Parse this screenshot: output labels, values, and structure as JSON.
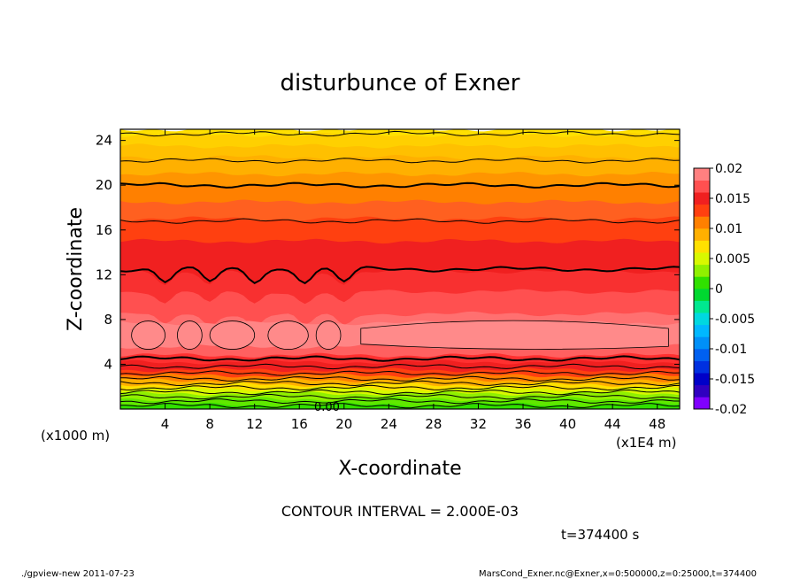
{
  "chart_data": {
    "type": "heatmap",
    "title": "disturbunce of Exner",
    "xlabel": "X-coordinate",
    "ylabel": "Z-coordinate",
    "x_unit_left": "(x1000 m)",
    "x_unit_right": "(x1E4 m)",
    "xlim": [
      0,
      50
    ],
    "ylim": [
      0,
      25
    ],
    "x_ticks": [
      "4",
      "8",
      "12",
      "16",
      "20",
      "24",
      "28",
      "32",
      "36",
      "40",
      "44",
      "48"
    ],
    "y_ticks": [
      "4",
      "8",
      "12",
      "16",
      "20",
      "24"
    ],
    "contour_label": "0.00",
    "contour_interval_text": "CONTOUR INTERVAL = 2.000E-03",
    "time_text": "t=374400 s",
    "colorbar": {
      "labels": [
        "0.02",
        "0.015",
        "0.01",
        "0.005",
        "0",
        "-0.005",
        "-0.01",
        "-0.015",
        "-0.02"
      ],
      "levels": [
        -0.02,
        -0.018,
        -0.016,
        -0.014,
        -0.012,
        -0.01,
        -0.008,
        -0.006,
        -0.004,
        -0.002,
        0,
        0.002,
        0.004,
        0.006,
        0.008,
        0.01,
        0.012,
        0.014,
        0.016,
        0.018,
        0.02
      ],
      "colors": [
        "#8000ff",
        "#3000c0",
        "#0000c8",
        "#0030e0",
        "#0060f0",
        "#0090f8",
        "#00b8ff",
        "#00d8e0",
        "#00e890",
        "#00d830",
        "#30e000",
        "#90f000",
        "#d8f800",
        "#ffe000",
        "#ffb000",
        "#ff8000",
        "#ff4010",
        "#f02020",
        "#ff5050",
        "#ff8080"
      ]
    },
    "bands": [
      {
        "z_top": 25,
        "color": "#ffe000"
      },
      {
        "z_top": 24.5,
        "color": "#ffd000"
      },
      {
        "z_top": 23.5,
        "color": "#ffc000"
      },
      {
        "z_top": 22.5,
        "color": "#ffb000"
      },
      {
        "z_top": 21,
        "color": "#ff9500"
      },
      {
        "z_top": 20,
        "color": "#ff8000"
      },
      {
        "z_top": 18.5,
        "color": "#ff6020"
      },
      {
        "z_top": 17,
        "color": "#ff4010"
      },
      {
        "z_top": 15,
        "color": "#f02020"
      },
      {
        "z_top": 12.3,
        "color": "#f83030"
      },
      {
        "z_top": 10.5,
        "color": "#ff5050"
      },
      {
        "z_top": 8.5,
        "color": "#ff7070"
      },
      {
        "z_top": 7.7,
        "color": "#ff8585"
      },
      {
        "z_top": 5.6,
        "color": "#ff6060"
      },
      {
        "z_top": 4.8,
        "color": "#ff3030"
      },
      {
        "z_top": 4.2,
        "color": "#f02020"
      },
      {
        "z_top": 3.5,
        "color": "#ff4010"
      },
      {
        "z_top": 3.0,
        "color": "#ff8000"
      },
      {
        "z_top": 2.6,
        "color": "#ffb000"
      },
      {
        "z_top": 2.2,
        "color": "#ffe000"
      },
      {
        "z_top": 1.8,
        "color": "#d8f800"
      },
      {
        "z_top": 1.4,
        "color": "#90f000"
      },
      {
        "z_top": 0.9,
        "color": "#60e800"
      },
      {
        "z_top": 0.4,
        "color": "#30e000"
      }
    ],
    "contours": [
      {
        "z": 24.6,
        "width": 1
      },
      {
        "z": 22.2,
        "width": 1
      },
      {
        "z": 20.0,
        "width": 2
      },
      {
        "z": 16.8,
        "width": 1
      },
      {
        "z": 12.5,
        "width": 2
      },
      {
        "z": 4.5,
        "width": 2
      },
      {
        "z": 3.8,
        "width": 1
      },
      {
        "z": 3.2,
        "width": 1
      },
      {
        "z": 2.7,
        "width": 1
      },
      {
        "z": 2.3,
        "width": 1
      },
      {
        "z": 1.9,
        "width": 1
      },
      {
        "z": 1.5,
        "width": 1
      },
      {
        "z": 1.1,
        "width": 1
      },
      {
        "z": 0.7,
        "width": 1
      },
      {
        "z": 0.3,
        "width": 1
      }
    ]
  },
  "footer": {
    "left": "./gpview-new   2011-07-23",
    "right": "MarsCond_Exner.nc@Exner,x=0:500000,z=0:25000,t=374400"
  }
}
